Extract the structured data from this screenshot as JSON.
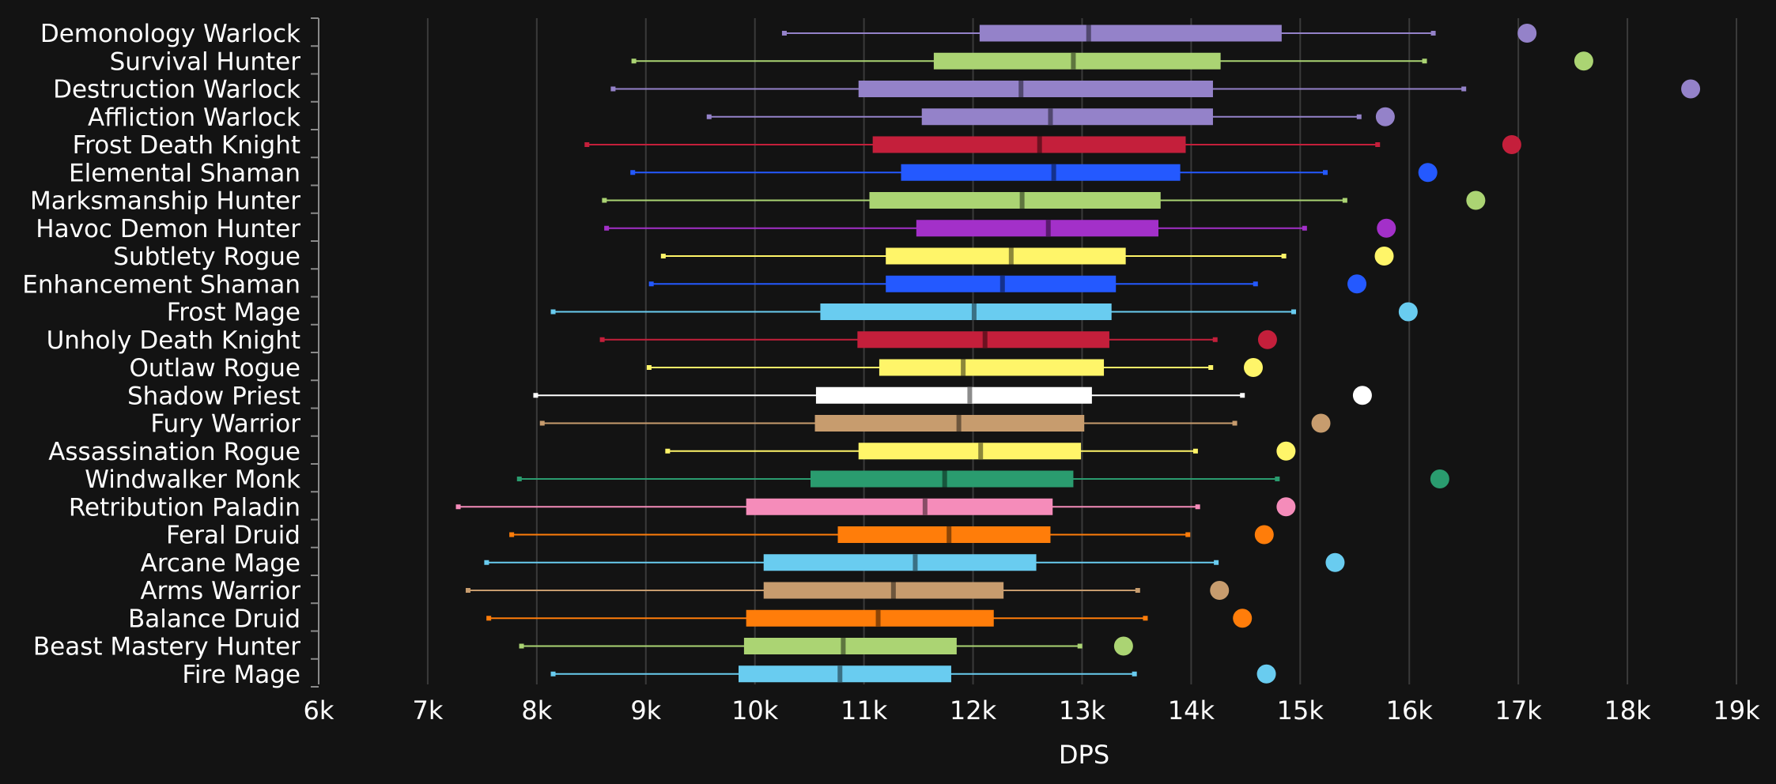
{
  "chart_data": {
    "type": "box",
    "xlabel": "DPS",
    "xlim": [
      6000,
      19000
    ],
    "xticks": [
      {
        "value": 6000,
        "label": "6k"
      },
      {
        "value": 7000,
        "label": "7k"
      },
      {
        "value": 8000,
        "label": "8k"
      },
      {
        "value": 9000,
        "label": "9k"
      },
      {
        "value": 10000,
        "label": "10k"
      },
      {
        "value": 11000,
        "label": "11k"
      },
      {
        "value": 12000,
        "label": "12k"
      },
      {
        "value": 13000,
        "label": "13k"
      },
      {
        "value": 14000,
        "label": "14k"
      },
      {
        "value": 15000,
        "label": "15k"
      },
      {
        "value": 16000,
        "label": "16k"
      },
      {
        "value": 17000,
        "label": "17k"
      },
      {
        "value": 18000,
        "label": "18k"
      },
      {
        "value": 19000,
        "label": "19k"
      }
    ],
    "grid": true,
    "series": [
      {
        "name": "Demonology Warlock",
        "color": "#9482c9",
        "min": 10270,
        "q1": 12060,
        "median": 13060,
        "q3": 14830,
        "max": 16220,
        "outlier": 17080
      },
      {
        "name": "Survival Hunter",
        "color": "#abd473",
        "min": 8890,
        "q1": 11640,
        "median": 12920,
        "q3": 14270,
        "max": 16140,
        "outlier": 17600
      },
      {
        "name": "Destruction Warlock",
        "color": "#9482c9",
        "min": 8700,
        "q1": 10950,
        "median": 12440,
        "q3": 14200,
        "max": 16500,
        "outlier": 18580
      },
      {
        "name": "Affliction Warlock",
        "color": "#9482c9",
        "min": 9580,
        "q1": 11530,
        "median": 12710,
        "q3": 14200,
        "max": 15540,
        "outlier": 15780
      },
      {
        "name": "Frost Death Knight",
        "color": "#c41f3b",
        "min": 8460,
        "q1": 11080,
        "median": 12610,
        "q3": 13950,
        "max": 15710,
        "outlier": 16940
      },
      {
        "name": "Elemental Shaman",
        "color": "#2459ff",
        "min": 8880,
        "q1": 11340,
        "median": 12740,
        "q3": 13900,
        "max": 15230,
        "outlier": 16170
      },
      {
        "name": "Marksmanship Hunter",
        "color": "#abd473",
        "min": 8620,
        "q1": 11050,
        "median": 12450,
        "q3": 13720,
        "max": 15410,
        "outlier": 16610
      },
      {
        "name": "Havoc Demon Hunter",
        "color": "#a330c9",
        "min": 8640,
        "q1": 11480,
        "median": 12690,
        "q3": 13700,
        "max": 15040,
        "outlier": 15790
      },
      {
        "name": "Subtlety Rogue",
        "color": "#fff569",
        "min": 9160,
        "q1": 11200,
        "median": 12350,
        "q3": 13400,
        "max": 14850,
        "outlier": 15770
      },
      {
        "name": "Enhancement Shaman",
        "color": "#2459ff",
        "min": 9050,
        "q1": 11200,
        "median": 12270,
        "q3": 13310,
        "max": 14590,
        "outlier": 15520
      },
      {
        "name": "Frost Mage",
        "color": "#69ccf0",
        "min": 8150,
        "q1": 10600,
        "median": 12010,
        "q3": 13270,
        "max": 14940,
        "outlier": 15990
      },
      {
        "name": "Unholy Death Knight",
        "color": "#c41f3b",
        "min": 8600,
        "q1": 10940,
        "median": 12110,
        "q3": 13250,
        "max": 14220,
        "outlier": 14700
      },
      {
        "name": "Outlaw Rogue",
        "color": "#fff569",
        "min": 9030,
        "q1": 11140,
        "median": 11910,
        "q3": 13200,
        "max": 14180,
        "outlier": 14570
      },
      {
        "name": "Shadow Priest",
        "color": "#ffffff",
        "min": 7990,
        "q1": 10560,
        "median": 11970,
        "q3": 13090,
        "max": 14470,
        "outlier": 15570
      },
      {
        "name": "Fury Warrior",
        "color": "#c79c6e",
        "min": 8050,
        "q1": 10550,
        "median": 11870,
        "q3": 13020,
        "max": 14400,
        "outlier": 15190
      },
      {
        "name": "Assassination Rogue",
        "color": "#fff569",
        "min": 9200,
        "q1": 10950,
        "median": 12070,
        "q3": 12990,
        "max": 14040,
        "outlier": 14870
      },
      {
        "name": "Windwalker Monk",
        "color": "#2a9c6f",
        "min": 7840,
        "q1": 10510,
        "median": 11740,
        "q3": 12920,
        "max": 14790,
        "outlier": 16280
      },
      {
        "name": "Retribution Paladin",
        "color": "#f58cba",
        "min": 7280,
        "q1": 9920,
        "median": 11560,
        "q3": 12730,
        "max": 14060,
        "outlier": 14870
      },
      {
        "name": "Feral Druid",
        "color": "#ff7d0a",
        "min": 7770,
        "q1": 10760,
        "median": 11780,
        "q3": 12710,
        "max": 13970,
        "outlier": 14670
      },
      {
        "name": "Arcane Mage",
        "color": "#69ccf0",
        "min": 7540,
        "q1": 10080,
        "median": 11470,
        "q3": 12580,
        "max": 14230,
        "outlier": 15320
      },
      {
        "name": "Arms Warrior",
        "color": "#c79c6e",
        "min": 7370,
        "q1": 10080,
        "median": 11270,
        "q3": 12280,
        "max": 13510,
        "outlier": 14260
      },
      {
        "name": "Balance Druid",
        "color": "#ff7d0a",
        "min": 7560,
        "q1": 9920,
        "median": 11130,
        "q3": 12190,
        "max": 13580,
        "outlier": 14470
      },
      {
        "name": "Beast Mastery Hunter",
        "color": "#abd473",
        "min": 7860,
        "q1": 9900,
        "median": 10810,
        "q3": 11850,
        "max": 12980,
        "outlier": 13380
      },
      {
        "name": "Fire Mage",
        "color": "#69ccf0",
        "min": 8150,
        "q1": 9850,
        "median": 10780,
        "q3": 11800,
        "max": 13480,
        "outlier": 14690
      }
    ]
  }
}
